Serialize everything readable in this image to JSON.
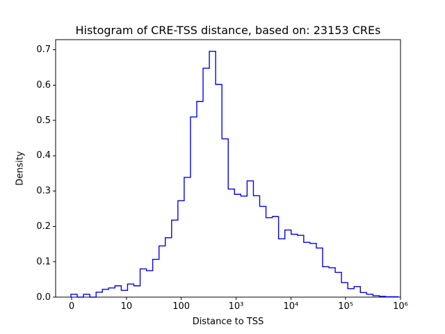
{
  "figure": {
    "background": "#ffffff"
  },
  "chart_data": {
    "type": "histogram",
    "histtype": "step",
    "title": "Histogram of CRE-TSS distance, based on: 23153 CREs",
    "n_samples": 23153,
    "xlabel": "Distance to TSS",
    "ylabel": "Density",
    "line_color": "#0202f2",
    "axis_color": "#000000",
    "grid": false,
    "legend": null,
    "x_scale": "symlog",
    "x_ticks": [
      {
        "t": 0,
        "label": "0"
      },
      {
        "t": 1,
        "label": "10"
      },
      {
        "t": 2,
        "label": "100"
      },
      {
        "t": 3,
        "label": "10³"
      },
      {
        "t": 4,
        "label": "10⁴"
      },
      {
        "t": 5,
        "label": "10⁵"
      },
      {
        "t": 6,
        "label": "10⁶"
      }
    ],
    "t_range": [
      -0.292,
      6.0
    ],
    "y_ticks": [
      {
        "value": 0.0,
        "label": "0.0"
      },
      {
        "value": 0.1,
        "label": "0.1"
      },
      {
        "value": 0.2,
        "label": "0.2"
      },
      {
        "value": 0.3,
        "label": "0.3"
      },
      {
        "value": 0.4,
        "label": "0.4"
      },
      {
        "value": 0.5,
        "label": "0.5"
      },
      {
        "value": 0.6,
        "label": "0.6"
      },
      {
        "value": 0.7,
        "label": "0.7"
      }
    ],
    "ylim": [
      0,
      0.7288
    ],
    "bins": {
      "t_start": -0.013,
      "t_width": 0.1148,
      "densities": [
        0.008,
        0.0,
        0.008,
        0.0,
        0.014,
        0.022,
        0.026,
        0.032,
        0.019,
        0.037,
        0.032,
        0.08,
        0.075,
        0.107,
        0.145,
        0.168,
        0.218,
        0.273,
        0.339,
        0.51,
        0.554,
        0.648,
        0.696,
        0.602,
        0.448,
        0.306,
        0.291,
        0.286,
        0.329,
        0.287,
        0.257,
        0.225,
        0.228,
        0.165,
        0.19,
        0.178,
        0.175,
        0.155,
        0.152,
        0.139,
        0.086,
        0.083,
        0.07,
        0.041,
        0.024,
        0.03,
        0.013,
        0.008,
        0.004,
        0.002,
        0.001,
        0.001
      ],
      "x_edges_approx": [
        0,
        1.0,
        2.2,
        3.3,
        4.5,
        5.6,
        6.8,
        7.9,
        9.1,
        10.5,
        13.6,
        17.8,
        23.2,
        30.2,
        39.3,
        51.2,
        66.7,
        86.9,
        113,
        147,
        192,
        250,
        326,
        424,
        552,
        719,
        937,
        1220,
        1590,
        2070,
        2700,
        3520,
        4580,
        5970,
        7770,
        10100,
        13200,
        17200,
        22400,
        29100,
        37900,
        49400,
        64400,
        83900,
        109000,
        142000,
        185000,
        241000,
        314000,
        409000,
        533000,
        695000,
        905000
      ]
    }
  }
}
